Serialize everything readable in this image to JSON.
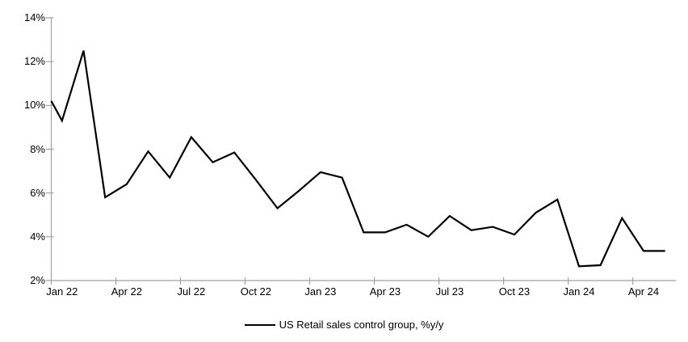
{
  "chart_data": {
    "type": "line",
    "series_name": "US Retail sales control group, %y/y",
    "x": [
      "Jan 22",
      "Feb 22",
      "Mar 22",
      "Apr 22",
      "May 22",
      "Jun 22",
      "Jul 22",
      "Aug 22",
      "Sep 22",
      "Oct 22",
      "Nov 22",
      "Dec 22",
      "Jan 23",
      "Feb 23",
      "Mar 23",
      "Apr 23",
      "May 23",
      "Jun 23",
      "Jul 23",
      "Aug 23",
      "Sep 23",
      "Oct 23",
      "Nov 23",
      "Dec 23",
      "Jan 24",
      "Feb 24",
      "Mar 24",
      "Apr 24",
      "May 24"
    ],
    "values": [
      9.3,
      12.5,
      5.8,
      6.4,
      7.9,
      6.7,
      8.55,
      7.4,
      7.85,
      6.6,
      5.3,
      6.1,
      6.95,
      6.7,
      4.2,
      4.2,
      4.55,
      4.0,
      4.95,
      4.3,
      4.45,
      4.1,
      5.1,
      5.7,
      2.65,
      2.7,
      4.85,
      3.35,
      3.35
    ],
    "entry_point_value": 10.2,
    "x_tick_labels": [
      "Jan 22",
      "Apr 22",
      "Jul 22",
      "Oct 22",
      "Jan 23",
      "Apr 23",
      "Jul 23",
      "Oct 23",
      "Jan 24",
      "Apr 24"
    ],
    "y_ticks": [
      "14%",
      "12%",
      "10%",
      "8%",
      "6%",
      "4%",
      "2%"
    ],
    "ylim": [
      2,
      14
    ],
    "y_tick_step": 2,
    "grid": "off",
    "legend_position": "bottom-center",
    "line_color": "#000000",
    "axis_color": "#a0a0a0",
    "label_color": "#000000",
    "background": "#ffffff"
  },
  "legend": {
    "series_label": "US Retail sales control group, %y/y"
  }
}
